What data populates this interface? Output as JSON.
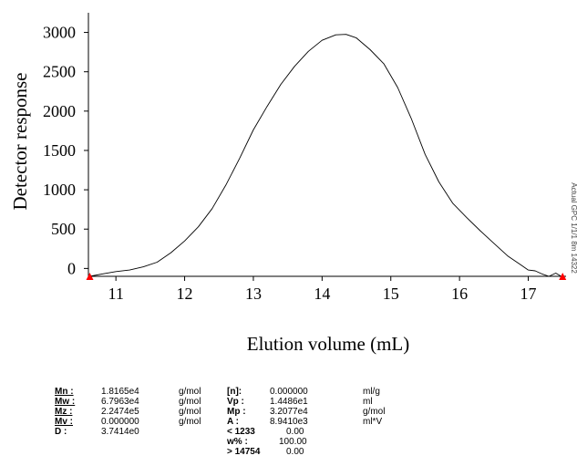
{
  "chart_data": {
    "type": "line",
    "xlabel": "Elution volume (mL)",
    "ylabel": "Detector response",
    "xlim": [
      10.6,
      17.55
    ],
    "ylim": [
      -100,
      3250
    ],
    "x_ticks": [
      11,
      12,
      13,
      14,
      15,
      16,
      17
    ],
    "y_ticks": [
      0,
      500,
      1000,
      1500,
      2000,
      2500,
      3000
    ],
    "grid": false,
    "markers": [
      10.62,
      17.5
    ],
    "marker_color": "#ff0000",
    "line_color": "#000000",
    "side_note": "Actual GPC 1/1/1 8m 14322",
    "series": [
      {
        "x": [
          10.62,
          10.8,
          11.0,
          11.2,
          11.4,
          11.6,
          11.8,
          12.0,
          12.2,
          12.4,
          12.6,
          12.8,
          13.0,
          13.2,
          13.4,
          13.6,
          13.8,
          14.0,
          14.2,
          14.35,
          14.5,
          14.7,
          14.9,
          15.1,
          15.3,
          15.5,
          15.7,
          15.9,
          16.1,
          16.3,
          16.5,
          16.7,
          16.9,
          17.0,
          17.1,
          17.2,
          17.3,
          17.4,
          17.5
        ],
        "y": [
          -100,
          -70,
          -40,
          -20,
          20,
          80,
          200,
          350,
          530,
          760,
          1060,
          1400,
          1760,
          2060,
          2340,
          2570,
          2760,
          2900,
          2970,
          2975,
          2930,
          2780,
          2600,
          2300,
          1900,
          1450,
          1100,
          830,
          650,
          480,
          320,
          160,
          40,
          -20,
          -30,
          -70,
          -100,
          -60,
          -110
        ]
      }
    ]
  },
  "results": {
    "rows_left": [
      {
        "label": "Mn :",
        "value": "1.8165e4",
        "unit": "g/mol"
      },
      {
        "label": "Mw :",
        "value": "6.7963e4",
        "unit": "g/mol"
      },
      {
        "label": "Mz :",
        "value": "2.2474e5",
        "unit": "g/mol"
      },
      {
        "label": "Mv :",
        "value": "0.000000",
        "unit": "g/mol"
      },
      {
        "label": "D :",
        "value": "3.7414e0",
        "unit": ""
      }
    ],
    "rows_right": [
      {
        "label": "[n]:",
        "value": "0.000000",
        "unit": "ml/g"
      },
      {
        "label": "Vp :",
        "value": "1.4486e1",
        "unit": "ml"
      },
      {
        "label": "Mp :",
        "value": "3.2077e4",
        "unit": "g/mol"
      },
      {
        "label": "A :",
        "value": "8.9410e3",
        "unit": "ml*V"
      },
      {
        "label": "< 1233",
        "value": "0.00",
        "unit": ""
      },
      {
        "label": "w% :",
        "value": "100.00",
        "unit": ""
      },
      {
        "label": "> 14754",
        "value": "0.00",
        "unit": ""
      }
    ]
  }
}
